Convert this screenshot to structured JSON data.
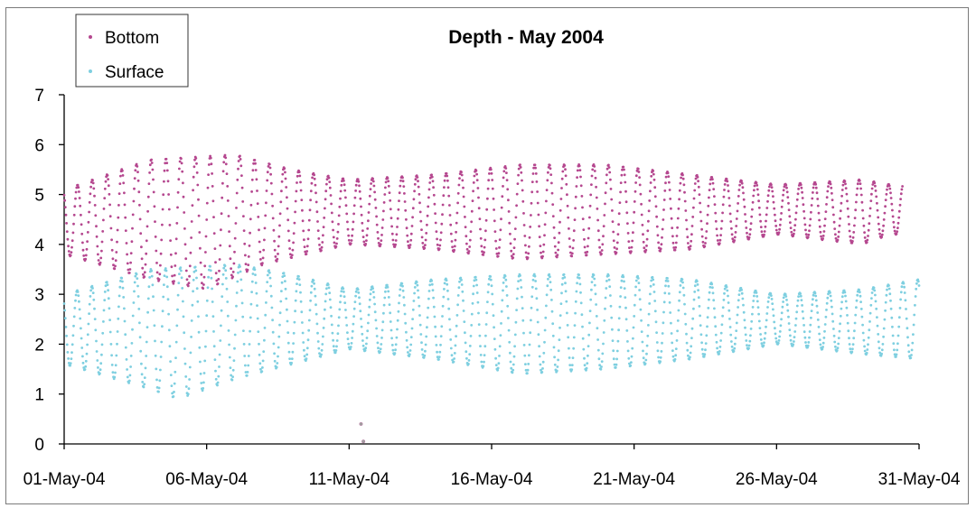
{
  "chart_data": {
    "type": "scatter",
    "title": "Depth - May 2004",
    "xlabel": "",
    "ylabel": "",
    "x_ticks": [
      "01-May-04",
      "06-May-04",
      "11-May-04",
      "16-May-04",
      "21-May-04",
      "26-May-04",
      "31-May-04"
    ],
    "y_ticks": [
      "0",
      "1",
      "2",
      "3",
      "4",
      "5",
      "6",
      "7"
    ],
    "xlim": [
      "2004-05-01",
      "2004-05-31"
    ],
    "ylim": [
      0,
      7
    ],
    "grid": false,
    "legend_position": "top-left",
    "series": [
      {
        "name": "Bottom",
        "color": "#b5478f",
        "marker": "dot",
        "sampling": "regular ~30-minute readings, semidiurnal tide",
        "crest_curve": [
          {
            "x": "2004-05-01",
            "y": 5.1
          },
          {
            "x": "2004-05-04",
            "y": 5.7
          },
          {
            "x": "2004-05-07",
            "y": 5.8
          },
          {
            "x": "2004-05-09",
            "y": 5.5
          },
          {
            "x": "2004-05-11",
            "y": 5.3
          },
          {
            "x": "2004-05-14",
            "y": 5.4
          },
          {
            "x": "2004-05-17",
            "y": 5.6
          },
          {
            "x": "2004-05-20",
            "y": 5.6
          },
          {
            "x": "2004-05-23",
            "y": 5.4
          },
          {
            "x": "2004-05-26",
            "y": 5.2
          },
          {
            "x": "2004-05-29",
            "y": 5.3
          },
          {
            "x": "2004-05-30",
            "y": 5.2
          }
        ],
        "trough_curve": [
          {
            "x": "2004-05-01",
            "y": 3.8
          },
          {
            "x": "2004-05-04",
            "y": 3.3
          },
          {
            "x": "2004-05-06",
            "y": 3.1
          },
          {
            "x": "2004-05-08",
            "y": 3.6
          },
          {
            "x": "2004-05-11",
            "y": 4.0
          },
          {
            "x": "2004-05-14",
            "y": 3.9
          },
          {
            "x": "2004-05-17",
            "y": 3.7
          },
          {
            "x": "2004-05-20",
            "y": 3.8
          },
          {
            "x": "2004-05-23",
            "y": 3.9
          },
          {
            "x": "2004-05-26",
            "y": 4.2
          },
          {
            "x": "2004-05-29",
            "y": 4.0
          },
          {
            "x": "2004-05-30",
            "y": 4.2
          }
        ]
      },
      {
        "name": "Surface",
        "color": "#7ecfe0",
        "marker": "dot",
        "sampling": "regular ~30-minute readings, semidiurnal tide",
        "crest_curve": [
          {
            "x": "2004-05-01",
            "y": 3.0
          },
          {
            "x": "2004-05-04",
            "y": 3.5
          },
          {
            "x": "2004-05-07",
            "y": 3.6
          },
          {
            "x": "2004-05-09",
            "y": 3.4
          },
          {
            "x": "2004-05-11",
            "y": 3.1
          },
          {
            "x": "2004-05-14",
            "y": 3.3
          },
          {
            "x": "2004-05-17",
            "y": 3.4
          },
          {
            "x": "2004-05-20",
            "y": 3.4
          },
          {
            "x": "2004-05-23",
            "y": 3.3
          },
          {
            "x": "2004-05-26",
            "y": 3.0
          },
          {
            "x": "2004-05-29",
            "y": 3.1
          },
          {
            "x": "2004-05-31",
            "y": 3.3
          }
        ],
        "trough_curve": [
          {
            "x": "2004-05-01",
            "y": 1.6
          },
          {
            "x": "2004-05-04",
            "y": 1.1
          },
          {
            "x": "2004-05-05",
            "y": 0.9
          },
          {
            "x": "2004-05-07",
            "y": 1.3
          },
          {
            "x": "2004-05-11",
            "y": 1.9
          },
          {
            "x": "2004-05-14",
            "y": 1.7
          },
          {
            "x": "2004-05-17",
            "y": 1.4
          },
          {
            "x": "2004-05-20",
            "y": 1.5
          },
          {
            "x": "2004-05-23",
            "y": 1.7
          },
          {
            "x": "2004-05-26",
            "y": 2.0
          },
          {
            "x": "2004-05-29",
            "y": 1.8
          },
          {
            "x": "2004-05-31",
            "y": 1.7
          }
        ]
      }
    ],
    "outliers": [
      {
        "series": "Bottom",
        "x": "2004-05-11T10:00",
        "y": 0.4
      },
      {
        "series": "Bottom",
        "x": "2004-05-11T12:00",
        "y": 0.05
      }
    ]
  }
}
